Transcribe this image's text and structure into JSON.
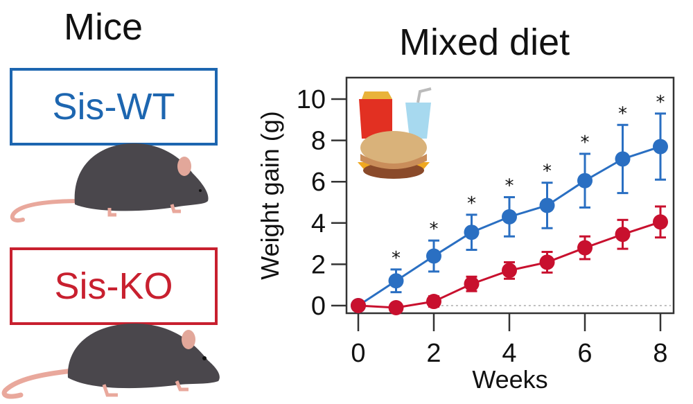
{
  "left_panel": {
    "title": "Mice",
    "groups": [
      {
        "label": "Sis-WT",
        "color": "#1d66b0"
      },
      {
        "label": "Sis-KO",
        "color": "#c8202f"
      }
    ]
  },
  "chart_data": {
    "type": "line",
    "title": "Mixed diet",
    "xlabel": "Weeks",
    "ylabel": "Weight gain (g)",
    "x": [
      0,
      1,
      2,
      3,
      4,
      5,
      6,
      7,
      8
    ],
    "xticks": [
      0,
      2,
      4,
      6,
      8
    ],
    "yticks": [
      0,
      2,
      4,
      6,
      8,
      10
    ],
    "xlim": [
      -0.15,
      8.5
    ],
    "ylim": [
      -0.4,
      11.0
    ],
    "grid": false,
    "reference_line": {
      "y": 0,
      "style": "dotted",
      "from_x": 2.2
    },
    "inset_icon": "fast-food-icon",
    "series": [
      {
        "name": "Sis-WT",
        "color": "#2a6fc2",
        "values": [
          0,
          1.2,
          2.4,
          3.55,
          4.3,
          4.85,
          6.05,
          7.1,
          7.7
        ],
        "errors": [
          0,
          0.55,
          0.75,
          0.85,
          0.95,
          1.1,
          1.3,
          1.65,
          1.6
        ],
        "significant": [
          false,
          true,
          true,
          true,
          true,
          true,
          true,
          true,
          true
        ]
      },
      {
        "name": "Sis-KO",
        "color": "#c8102e",
        "values": [
          0,
          -0.1,
          0.2,
          1.05,
          1.7,
          2.1,
          2.8,
          3.45,
          4.05
        ],
        "errors": [
          0,
          0.1,
          0.25,
          0.35,
          0.4,
          0.5,
          0.55,
          0.7,
          0.75
        ]
      }
    ],
    "significance_marker": "*"
  }
}
